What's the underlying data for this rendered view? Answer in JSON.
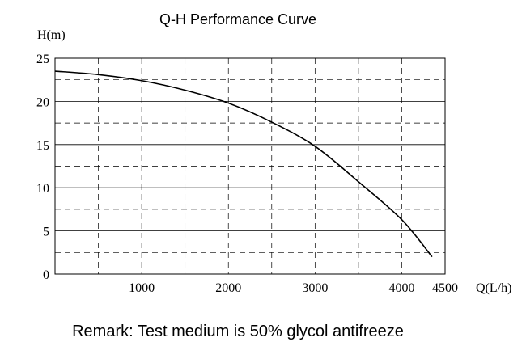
{
  "chart_data": {
    "type": "line",
    "title": "Q-H Performance Curve",
    "ylabel": "H(m)",
    "xlabel": "Q(L/h)",
    "xlim": [
      0,
      4500
    ],
    "ylim": [
      0,
      25
    ],
    "x_ticks": [
      {
        "value": 1000,
        "label": "1000"
      },
      {
        "value": 2000,
        "label": "2000"
      },
      {
        "value": 3000,
        "label": "3000"
      },
      {
        "value": 4000,
        "label": "4000"
      },
      {
        "value": 4500,
        "label": "4500"
      }
    ],
    "y_ticks": [
      {
        "value": 0,
        "label": "0"
      },
      {
        "value": 5,
        "label": "5"
      },
      {
        "value": 10,
        "label": "10"
      },
      {
        "value": 15,
        "label": "15"
      },
      {
        "value": 20,
        "label": "20"
      },
      {
        "value": 25,
        "label": "25"
      }
    ],
    "grid": true,
    "series": [
      {
        "x": [
          0,
          500,
          1000,
          1500,
          2000,
          2500,
          3000,
          3500,
          4000,
          4350
        ],
        "values": [
          23.5,
          23.1,
          22.4,
          21.3,
          19.8,
          17.6,
          14.8,
          10.7,
          6.3,
          2.0
        ]
      }
    ]
  },
  "remark": "Remark: Test medium is 50% glycol antifreeze"
}
